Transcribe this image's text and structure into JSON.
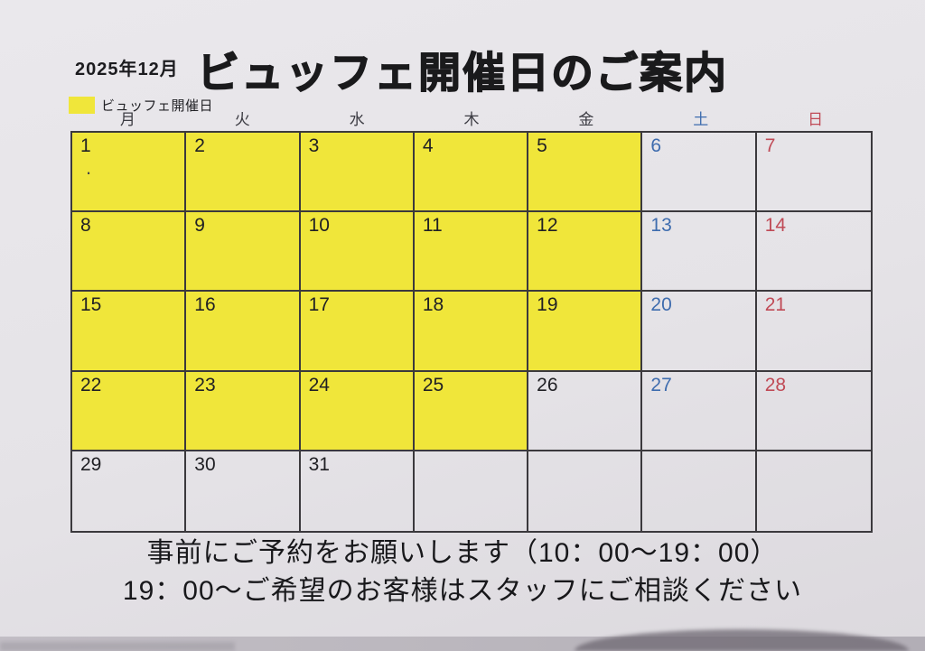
{
  "page": {
    "month_label": "2025年12月",
    "title": "ビュッフェ開催日のご案内"
  },
  "legend": {
    "label": "ビュッフェ開催日"
  },
  "colors": {
    "highlight_yellow": "#f0e63a",
    "saturday_blue": "#3e6cae",
    "sunday_red": "#c04a56",
    "weekday_ink": "#202024",
    "grid_line": "#3b393d"
  },
  "calendar": {
    "weekday_headers": [
      {
        "label": "月",
        "type": "weekday"
      },
      {
        "label": "火",
        "type": "weekday"
      },
      {
        "label": "水",
        "type": "weekday"
      },
      {
        "label": "木",
        "type": "weekday"
      },
      {
        "label": "金",
        "type": "weekday"
      },
      {
        "label": "土",
        "type": "saturday"
      },
      {
        "label": "日",
        "type": "sunday"
      }
    ],
    "weeks": [
      [
        {
          "day": "1",
          "type": "weekday",
          "highlight": true,
          "mark": "."
        },
        {
          "day": "2",
          "type": "weekday",
          "highlight": true
        },
        {
          "day": "3",
          "type": "weekday",
          "highlight": true
        },
        {
          "day": "4",
          "type": "weekday",
          "highlight": true
        },
        {
          "day": "5",
          "type": "weekday",
          "highlight": true
        },
        {
          "day": "6",
          "type": "saturday",
          "highlight": false
        },
        {
          "day": "7",
          "type": "sunday",
          "highlight": false
        }
      ],
      [
        {
          "day": "8",
          "type": "weekday",
          "highlight": true
        },
        {
          "day": "9",
          "type": "weekday",
          "highlight": true
        },
        {
          "day": "10",
          "type": "weekday",
          "highlight": true
        },
        {
          "day": "11",
          "type": "weekday",
          "highlight": true
        },
        {
          "day": "12",
          "type": "weekday",
          "highlight": true
        },
        {
          "day": "13",
          "type": "saturday",
          "highlight": false
        },
        {
          "day": "14",
          "type": "sunday",
          "highlight": false
        }
      ],
      [
        {
          "day": "15",
          "type": "weekday",
          "highlight": true
        },
        {
          "day": "16",
          "type": "weekday",
          "highlight": true
        },
        {
          "day": "17",
          "type": "weekday",
          "highlight": true
        },
        {
          "day": "18",
          "type": "weekday",
          "highlight": true
        },
        {
          "day": "19",
          "type": "weekday",
          "highlight": true
        },
        {
          "day": "20",
          "type": "saturday",
          "highlight": false
        },
        {
          "day": "21",
          "type": "sunday",
          "highlight": false
        }
      ],
      [
        {
          "day": "22",
          "type": "weekday",
          "highlight": true
        },
        {
          "day": "23",
          "type": "weekday",
          "highlight": true
        },
        {
          "day": "24",
          "type": "weekday",
          "highlight": true
        },
        {
          "day": "25",
          "type": "weekday",
          "highlight": true
        },
        {
          "day": "26",
          "type": "weekday",
          "highlight": false
        },
        {
          "day": "27",
          "type": "saturday",
          "highlight": false
        },
        {
          "day": "28",
          "type": "sunday",
          "highlight": false
        }
      ],
      [
        {
          "day": "29",
          "type": "weekday",
          "highlight": false
        },
        {
          "day": "30",
          "type": "weekday",
          "highlight": false
        },
        {
          "day": "31",
          "type": "weekday",
          "highlight": false
        },
        {
          "day": "",
          "type": "empty",
          "highlight": false
        },
        {
          "day": "",
          "type": "empty",
          "highlight": false
        },
        {
          "day": "",
          "type": "empty",
          "highlight": false
        },
        {
          "day": "",
          "type": "empty",
          "highlight": false
        }
      ]
    ]
  },
  "footer": {
    "line1": "事前にご予約をお願いします（10：00～19：00）",
    "line2": "19：00～ご希望のお客様はスタッフにご相談ください"
  }
}
